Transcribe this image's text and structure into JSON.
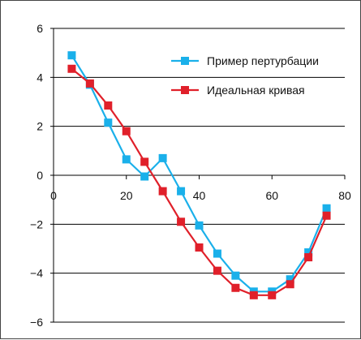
{
  "chart_data": {
    "type": "line",
    "title": "",
    "xlabel": "",
    "ylabel": "",
    "xlim": [
      0,
      80
    ],
    "ylim": [
      -6,
      6
    ],
    "xticks": [
      "0",
      "20",
      "40",
      "60",
      "80"
    ],
    "yticks": [
      "−6",
      "−4",
      "−2",
      "0",
      "2",
      "4",
      "6"
    ],
    "grid": "horizontal",
    "legend_position": "top-right",
    "x": [
      5,
      10,
      15,
      20,
      25,
      30,
      35,
      40,
      45,
      50,
      55,
      60,
      65,
      70,
      75
    ],
    "series": [
      {
        "name": "Пример пертурбации",
        "color": "#1ab0ea",
        "marker": "square",
        "values": [
          4.9,
          3.7,
          2.15,
          0.65,
          -0.05,
          0.7,
          -0.65,
          -2.05,
          -3.2,
          -4.1,
          -4.75,
          -4.75,
          -4.25,
          -3.15,
          -1.35
        ]
      },
      {
        "name": "Идеальная кривая",
        "color": "#e0202a",
        "marker": "square",
        "values": [
          4.35,
          3.75,
          2.85,
          1.8,
          0.55,
          -0.65,
          -1.9,
          -2.95,
          -3.9,
          -4.6,
          -4.9,
          -4.9,
          -4.45,
          -3.35,
          -1.65
        ]
      }
    ]
  }
}
